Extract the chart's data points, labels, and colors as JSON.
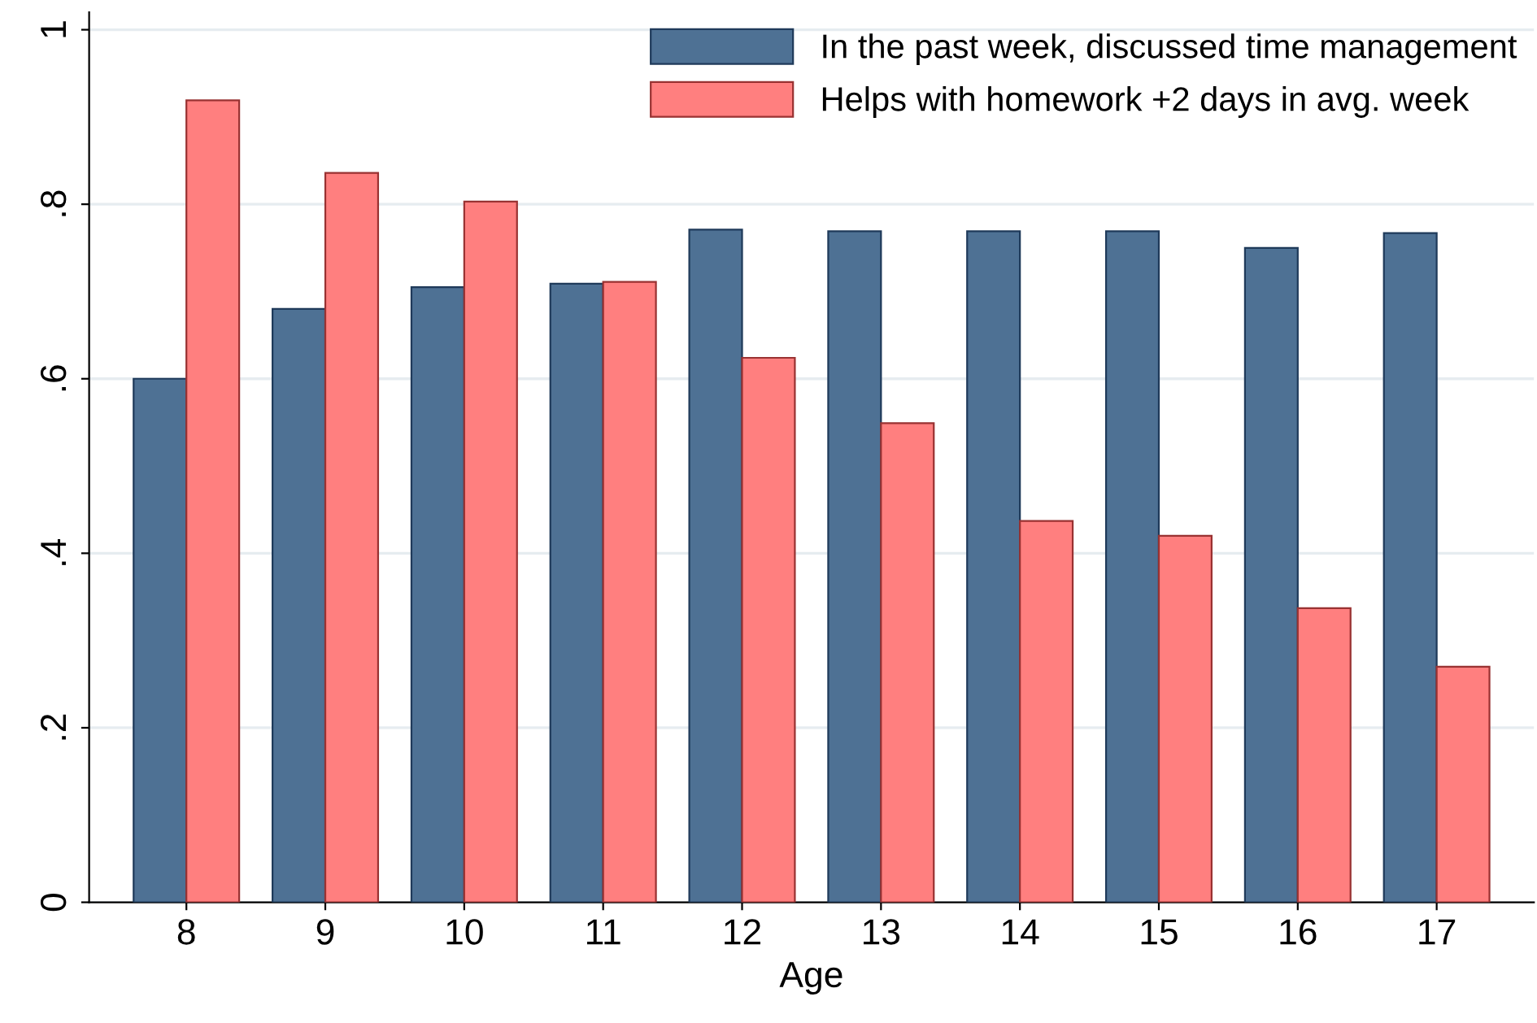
{
  "chart_data": {
    "type": "bar",
    "xlabel": "Age",
    "categories": [
      "8",
      "9",
      "10",
      "11",
      "12",
      "13",
      "14",
      "15",
      "16",
      "17"
    ],
    "series": [
      {
        "name": "In the past week, discussed time management",
        "color": "#4e7194",
        "values": [
          0.6,
          0.68,
          0.705,
          0.709,
          0.771,
          0.769,
          0.769,
          0.769,
          0.75,
          0.767
        ]
      },
      {
        "name": "Helps with homework +2 days in avg. week",
        "color": "#ff7f7f",
        "values": [
          0.919,
          0.836,
          0.803,
          0.711,
          0.624,
          0.549,
          0.437,
          0.42,
          0.337,
          0.27
        ]
      }
    ],
    "ylim": [
      0,
      1.02
    ],
    "yticks": [
      0,
      {
        "value": 0.2,
        "label": ".2"
      },
      {
        "value": 0.4,
        "label": ".4"
      },
      {
        "value": 0.6,
        "label": ".6"
      },
      {
        "value": 0.8,
        "label": ".8"
      },
      1
    ],
    "grid": "y",
    "legend": "top right"
  }
}
